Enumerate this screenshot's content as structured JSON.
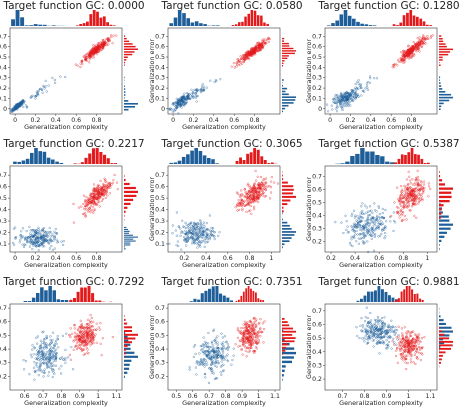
{
  "chart_data": [
    {
      "type": "scatter",
      "title": "Target function GC: 0.0000",
      "xlabel": "Generalization complexity",
      "ylabel": "Generalization error",
      "xlim": [
        -0.05,
        1.05
      ],
      "ylim": [
        -0.05,
        0.78
      ],
      "xticks": [
        {
          "v": 0,
          "label": "0"
        },
        {
          "v": 0.2,
          "label": "0.2"
        },
        {
          "v": 0.4,
          "label": "0.4"
        },
        {
          "v": 0.6,
          "label": "0.6"
        },
        {
          "v": 0.8,
          "label": "0.8"
        }
      ],
      "yticks": [
        {
          "v": 0,
          "label": "0"
        },
        {
          "v": 0.1,
          "label": "0.1"
        },
        {
          "v": 0.2,
          "label": "0.2"
        },
        {
          "v": 0.3,
          "label": "0.3"
        },
        {
          "v": 0.4,
          "label": "0.4"
        },
        {
          "v": 0.5,
          "label": "0.5"
        },
        {
          "v": 0.6,
          "label": "0.6"
        },
        {
          "v": 0.7,
          "label": "0.7"
        }
      ],
      "series": [
        {
          "color": "#1f5f99",
          "clusters": [
            {
              "cx": 0.03,
              "cy": 0.03,
              "sx": 0.03,
              "sy": 0.025,
              "n": 160,
              "corr": 0.9
            },
            {
              "cx": 0.22,
              "cy": 0.15,
              "sx": 0.1,
              "sy": 0.08,
              "n": 40,
              "corr": 0.95
            }
          ]
        },
        {
          "color": "#e31a1c",
          "clusters": [
            {
              "cx": 0.8,
              "cy": 0.57,
              "sx": 0.07,
              "sy": 0.055,
              "n": 260,
              "corr": 0.93
            }
          ]
        }
      ]
    },
    {
      "type": "scatter",
      "title": "Target function GC: 0.0580",
      "xlabel": "Generalization complexity",
      "ylabel": "Generalization error",
      "xlim": [
        -0.05,
        1.05
      ],
      "ylim": [
        -0.05,
        0.78
      ],
      "xticks": [
        {
          "v": 0,
          "label": "0"
        },
        {
          "v": 0.2,
          "label": "0.2"
        },
        {
          "v": 0.4,
          "label": "0.4"
        },
        {
          "v": 0.6,
          "label": "0.6"
        },
        {
          "v": 0.8,
          "label": "0.8"
        }
      ],
      "yticks": [
        {
          "v": 0,
          "label": "0"
        },
        {
          "v": 0.1,
          "label": "0.1"
        },
        {
          "v": 0.2,
          "label": "0.2"
        },
        {
          "v": 0.3,
          "label": "0.3"
        },
        {
          "v": 0.4,
          "label": "0.4"
        },
        {
          "v": 0.5,
          "label": "0.5"
        },
        {
          "v": 0.6,
          "label": "0.6"
        },
        {
          "v": 0.7,
          "label": "0.7"
        }
      ],
      "series": [
        {
          "color": "#1f5f99",
          "clusters": [
            {
              "cx": 0.08,
              "cy": 0.07,
              "sx": 0.05,
              "sy": 0.04,
              "n": 150,
              "corr": 0.8
            },
            {
              "cx": 0.25,
              "cy": 0.17,
              "sx": 0.1,
              "sy": 0.07,
              "n": 50,
              "corr": 0.9
            }
          ]
        },
        {
          "color": "#e31a1c",
          "clusters": [
            {
              "cx": 0.78,
              "cy": 0.55,
              "sx": 0.07,
              "sy": 0.055,
              "n": 260,
              "corr": 0.92
            }
          ]
        }
      ]
    },
    {
      "type": "scatter",
      "title": "Target function GC: 0.1280",
      "xlabel": "Generalization complexity",
      "ylabel": "Generalization error",
      "xlim": [
        -0.05,
        1.05
      ],
      "ylim": [
        -0.05,
        0.78
      ],
      "xticks": [
        {
          "v": 0,
          "label": "0"
        },
        {
          "v": 0.2,
          "label": "0.2"
        },
        {
          "v": 0.4,
          "label": "0.4"
        },
        {
          "v": 0.6,
          "label": "0.6"
        },
        {
          "v": 0.8,
          "label": "0.8"
        }
      ],
      "yticks": [
        {
          "v": 0,
          "label": "0"
        },
        {
          "v": 0.1,
          "label": "0.1"
        },
        {
          "v": 0.2,
          "label": "0.2"
        },
        {
          "v": 0.3,
          "label": "0.3"
        },
        {
          "v": 0.4,
          "label": "0.4"
        },
        {
          "v": 0.5,
          "label": "0.5"
        },
        {
          "v": 0.6,
          "label": "0.6"
        },
        {
          "v": 0.7,
          "label": "0.7"
        }
      ],
      "series": [
        {
          "color": "#1f5f99",
          "clusters": [
            {
              "cx": 0.15,
              "cy": 0.1,
              "sx": 0.06,
              "sy": 0.04,
              "n": 180,
              "corr": 0.6
            },
            {
              "cx": 0.3,
              "cy": 0.2,
              "sx": 0.08,
              "sy": 0.06,
              "n": 40,
              "corr": 0.8
            }
          ]
        },
        {
          "color": "#e31a1c",
          "clusters": [
            {
              "cx": 0.8,
              "cy": 0.56,
              "sx": 0.07,
              "sy": 0.06,
              "n": 260,
              "corr": 0.9
            }
          ]
        }
      ]
    },
    {
      "type": "scatter",
      "title": "Target function GC: 0.2217",
      "xlabel": "Generalization complexity",
      "ylabel": "Generalization error",
      "xlim": [
        -0.05,
        1.05
      ],
      "ylim": [
        0.03,
        0.78
      ],
      "xticks": [
        {
          "v": 0,
          "label": "0"
        },
        {
          "v": 0.2,
          "label": "0.2"
        },
        {
          "v": 0.4,
          "label": "0.4"
        },
        {
          "v": 0.6,
          "label": "0.6"
        },
        {
          "v": 0.8,
          "label": "0.8"
        }
      ],
      "yticks": [
        {
          "v": 0.1,
          "label": "0.1"
        },
        {
          "v": 0.2,
          "label": "0.2"
        },
        {
          "v": 0.3,
          "label": "0.3"
        },
        {
          "v": 0.4,
          "label": "0.4"
        },
        {
          "v": 0.5,
          "label": "0.5"
        },
        {
          "v": 0.6,
          "label": "0.6"
        },
        {
          "v": 0.7,
          "label": "0.7"
        }
      ],
      "series": [
        {
          "color": "#1f5f99",
          "clusters": [
            {
              "cx": 0.22,
              "cy": 0.15,
              "sx": 0.09,
              "sy": 0.045,
              "n": 230,
              "corr": -0.1
            }
          ]
        },
        {
          "color": "#e31a1c",
          "clusters": [
            {
              "cx": 0.81,
              "cy": 0.53,
              "sx": 0.07,
              "sy": 0.07,
              "n": 260,
              "corr": 0.75
            }
          ]
        }
      ]
    },
    {
      "type": "scatter",
      "title": "Target function GC: 0.3065",
      "xlabel": "Generalization complexity",
      "ylabel": "Generalization error",
      "xlim": [
        0.05,
        1.08
      ],
      "ylim": [
        0.03,
        0.78
      ],
      "xticks": [
        {
          "v": 0.2,
          "label": "0.2"
        },
        {
          "v": 0.4,
          "label": "0.4"
        },
        {
          "v": 0.6,
          "label": "0.6"
        },
        {
          "v": 0.8,
          "label": "0.8"
        },
        {
          "v": 1,
          "label": "1"
        }
      ],
      "yticks": [
        {
          "v": 0.1,
          "label": "0.1"
        },
        {
          "v": 0.2,
          "label": "0.2"
        },
        {
          "v": 0.3,
          "label": "0.3"
        },
        {
          "v": 0.4,
          "label": "0.4"
        },
        {
          "v": 0.5,
          "label": "0.5"
        },
        {
          "v": 0.6,
          "label": "0.6"
        },
        {
          "v": 0.7,
          "label": "0.7"
        }
      ],
      "series": [
        {
          "color": "#1f5f99",
          "clusters": [
            {
              "cx": 0.3,
              "cy": 0.19,
              "sx": 0.085,
              "sy": 0.055,
              "n": 230,
              "corr": 0.1
            }
          ]
        },
        {
          "color": "#e31a1c",
          "clusters": [
            {
              "cx": 0.83,
              "cy": 0.53,
              "sx": 0.07,
              "sy": 0.07,
              "n": 260,
              "corr": 0.65
            }
          ]
        }
      ]
    },
    {
      "type": "scatter",
      "title": "Target function GC: 0.5387",
      "xlabel": "Generalization complexity",
      "ylabel": "Generalization error",
      "xlim": [
        0.15,
        1.08
      ],
      "ylim": [
        0.12,
        0.78
      ],
      "xticks": [
        {
          "v": 0.2,
          "label": "0.2"
        },
        {
          "v": 0.4,
          "label": "0.4"
        },
        {
          "v": 0.6,
          "label": "0.6"
        },
        {
          "v": 0.8,
          "label": "0.8"
        },
        {
          "v": 1,
          "label": "1"
        }
      ],
      "yticks": [
        {
          "v": 0.2,
          "label": "0.2"
        },
        {
          "v": 0.3,
          "label": "0.3"
        },
        {
          "v": 0.4,
          "label": "0.4"
        },
        {
          "v": 0.5,
          "label": "0.5"
        },
        {
          "v": 0.6,
          "label": "0.6"
        },
        {
          "v": 0.7,
          "label": "0.7"
        }
      ],
      "series": [
        {
          "color": "#1f5f99",
          "clusters": [
            {
              "cx": 0.5,
              "cy": 0.33,
              "sx": 0.09,
              "sy": 0.07,
              "n": 240,
              "corr": 0.2
            }
          ]
        },
        {
          "color": "#e31a1c",
          "clusters": [
            {
              "cx": 0.87,
              "cy": 0.55,
              "sx": 0.06,
              "sy": 0.07,
              "n": 250,
              "corr": 0.5
            }
          ]
        }
      ]
    },
    {
      "type": "scatter",
      "title": "Target function GC: 0.7292",
      "xlabel": "Generalization complexity",
      "ylabel": "Generalization error",
      "xlim": [
        0.52,
        1.13
      ],
      "ylim": [
        0.1,
        0.73
      ],
      "xticks": [
        {
          "v": 0.6,
          "label": "0.6"
        },
        {
          "v": 0.7,
          "label": "0.7"
        },
        {
          "v": 0.8,
          "label": "0.8"
        },
        {
          "v": 0.9,
          "label": "0.9"
        },
        {
          "v": 1,
          "label": "1"
        },
        {
          "v": 1.1,
          "label": "1.1"
        }
      ],
      "yticks": [
        {
          "v": 0.2,
          "label": "0.2"
        },
        {
          "v": 0.3,
          "label": "0.3"
        },
        {
          "v": 0.4,
          "label": "0.4"
        },
        {
          "v": 0.5,
          "label": "0.5"
        },
        {
          "v": 0.6,
          "label": "0.6"
        },
        {
          "v": 0.7,
          "label": "0.7"
        }
      ],
      "series": [
        {
          "color": "#1f5f99",
          "clusters": [
            {
              "cx": 0.72,
              "cy": 0.35,
              "sx": 0.045,
              "sy": 0.07,
              "n": 230,
              "corr": 0.1
            }
          ]
        },
        {
          "color": "#e31a1c",
          "clusters": [
            {
              "cx": 0.93,
              "cy": 0.49,
              "sx": 0.035,
              "sy": 0.055,
              "n": 240,
              "corr": 0.2
            }
          ]
        }
      ]
    },
    {
      "type": "scatter",
      "title": "Target function GC: 0.7351",
      "xlabel": "Generalization complexity",
      "ylabel": "Generalization error",
      "xlim": [
        0.45,
        1.13
      ],
      "ylim": [
        0.1,
        0.73
      ],
      "xticks": [
        {
          "v": 0.5,
          "label": "0.5"
        },
        {
          "v": 0.6,
          "label": "0.6"
        },
        {
          "v": 0.7,
          "label": "0.7"
        },
        {
          "v": 0.8,
          "label": "0.8"
        },
        {
          "v": 0.9,
          "label": "0.9"
        },
        {
          "v": 1,
          "label": "1"
        },
        {
          "v": 1.1,
          "label": "1.1"
        }
      ],
      "yticks": [
        {
          "v": 0.2,
          "label": "0.2"
        },
        {
          "v": 0.3,
          "label": "0.3"
        },
        {
          "v": 0.4,
          "label": "0.4"
        },
        {
          "v": 0.5,
          "label": "0.5"
        },
        {
          "v": 0.6,
          "label": "0.6"
        },
        {
          "v": 0.7,
          "label": "0.7"
        }
      ],
      "series": [
        {
          "color": "#1f5f99",
          "clusters": [
            {
              "cx": 0.72,
              "cy": 0.35,
              "sx": 0.05,
              "sy": 0.07,
              "n": 230,
              "corr": 0.1
            }
          ]
        },
        {
          "color": "#e31a1c",
          "clusters": [
            {
              "cx": 0.95,
              "cy": 0.5,
              "sx": 0.035,
              "sy": 0.055,
              "n": 240,
              "corr": 0.2
            }
          ]
        }
      ]
    },
    {
      "type": "scatter",
      "title": "Target function GC: 0.9881",
      "xlabel": "Generalization complexity",
      "ylabel": "Generalization error",
      "xlim": [
        0.62,
        1.13
      ],
      "ylim": [
        0.12,
        0.75
      ],
      "xticks": [
        {
          "v": 0.7,
          "label": "0.7"
        },
        {
          "v": 0.8,
          "label": "0.8"
        },
        {
          "v": 0.9,
          "label": "0.9"
        },
        {
          "v": 1,
          "label": "1"
        },
        {
          "v": 1.1,
          "label": "1.1"
        }
      ],
      "yticks": [
        {
          "v": 0.2,
          "label": "0.2"
        },
        {
          "v": 0.3,
          "label": "0.3"
        },
        {
          "v": 0.4,
          "label": "0.4"
        },
        {
          "v": 0.5,
          "label": "0.5"
        },
        {
          "v": 0.6,
          "label": "0.6"
        },
        {
          "v": 0.7,
          "label": "0.7"
        }
      ],
      "series": [
        {
          "color": "#1f5f99",
          "clusters": [
            {
              "cx": 0.86,
              "cy": 0.55,
              "sx": 0.04,
              "sy": 0.055,
              "n": 240,
              "corr": -0.1
            }
          ]
        },
        {
          "color": "#e31a1c",
          "clusters": [
            {
              "cx": 1.0,
              "cy": 0.44,
              "sx": 0.03,
              "sy": 0.05,
              "n": 230,
              "corr": 0.0
            }
          ]
        }
      ]
    }
  ]
}
